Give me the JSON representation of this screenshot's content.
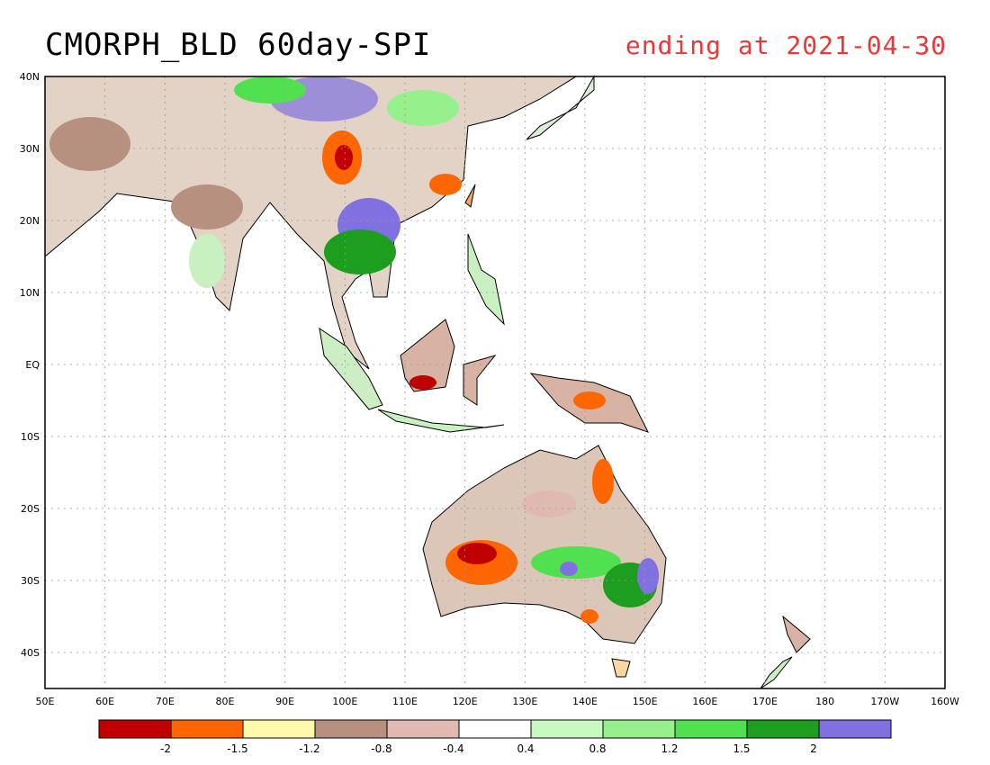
{
  "title": "CMORPH_BLD 60day-SPI",
  "subtitle": "ending at 2021-04-30",
  "subtitle_color": "#e8393a",
  "map": {
    "lon_range": [
      50,
      200
    ],
    "lat_range": [
      -45,
      40
    ],
    "lon_ticks": [
      "50E",
      "60E",
      "70E",
      "80E",
      "90E",
      "100E",
      "110E",
      "120E",
      "130E",
      "140E",
      "150E",
      "160E",
      "170E",
      "180",
      "170W",
      "160W"
    ],
    "lat_ticks": [
      "40N",
      "30N",
      "20N",
      "10N",
      "EQ",
      "10S",
      "20S",
      "30S",
      "40S"
    ],
    "grid": "dotted",
    "land_outline": "coastlines"
  },
  "legend": {
    "colors": [
      "#c00000",
      "#ff6600",
      "#fffaaa",
      "#b89080",
      "#e0bab0",
      "#ffffff",
      "#c8fac0",
      "#96f08c",
      "#50e050",
      "#1e9e1e",
      "#8070e0"
    ],
    "labels": [
      "-2",
      "-1.5",
      "-1.2",
      "-0.8",
      "-0.4",
      "0.4",
      "0.8",
      "1.2",
      "1.5",
      "2"
    ]
  }
}
